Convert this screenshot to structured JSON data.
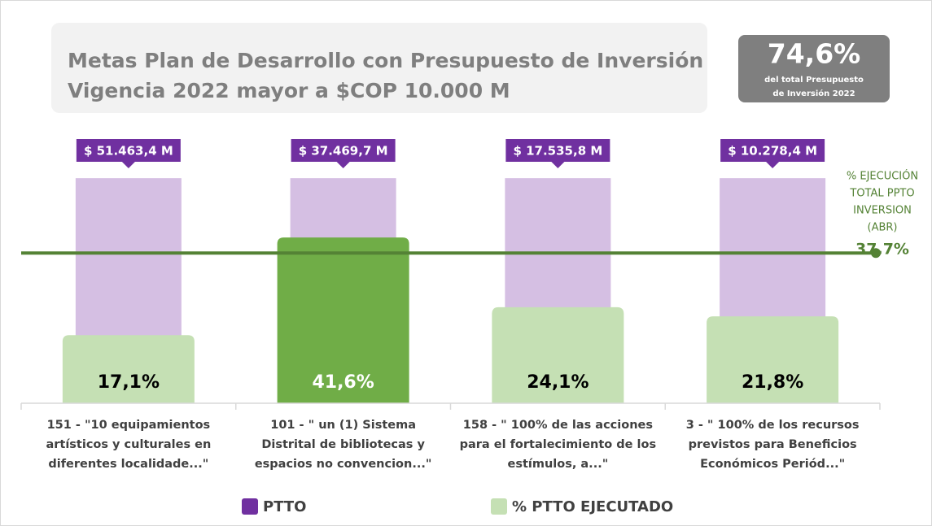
{
  "chart_data": {
    "type": "bar",
    "title": [
      "Metas Plan de Desarrollo con Presupuesto de Inversión",
      "Vigencia 2022 mayor a $COP 10.000 M"
    ],
    "highlight": {
      "value_label": "74,6%",
      "lines": [
        "del total Presupuesto",
        "de Inversión  2022"
      ]
    },
    "categories": [
      "151 - \"10 equipamientos\nartísticos y culturales en\ndiferentes localidade...\"",
      "101 - \" un (1) Sistema\nDistrital de bibliotecas y\nespacios no convencion...\"",
      "158 - \" 100% de las acciones\npara el fortalecimiento de los\nestímulos, a...\"",
      "3 - \" 100% de los recursos\nprevistos para Beneficios\nEconómicos Periód...\""
    ],
    "budget_labels": [
      "$ 51.463,4 M",
      "$ 37.469,7 M",
      "$ 17.535,8 M",
      "$ 10.278,4 M"
    ],
    "series": [
      {
        "name": "PTTO",
        "color": "#7030a0",
        "bar_color": "#d5bfe3",
        "values": [
          56.5,
          56.5,
          56.5,
          56.5
        ]
      },
      {
        "name": "% PTTO EJECUTADO",
        "color": "#c5e0b4",
        "point_colors": [
          "#c5e0b4",
          "#70ad47",
          "#c5e0b4",
          "#c5e0b4"
        ],
        "label_colors": [
          "#000000",
          "#ffffff",
          "#000000",
          "#000000"
        ],
        "values": [
          17.1,
          41.6,
          24.1,
          21.8
        ],
        "value_labels": [
          "17,1%",
          "41,6%",
          "24,1%",
          "21,8%"
        ]
      }
    ],
    "reference_line": {
      "value": 37.7,
      "value_label": "37,7%",
      "lines": [
        "% EJECUCIÓN",
        "TOTAL PPTO",
        "INVERSION",
        "(ABR)"
      ],
      "color": "#548235"
    },
    "ylim": [
      0,
      60
    ]
  }
}
